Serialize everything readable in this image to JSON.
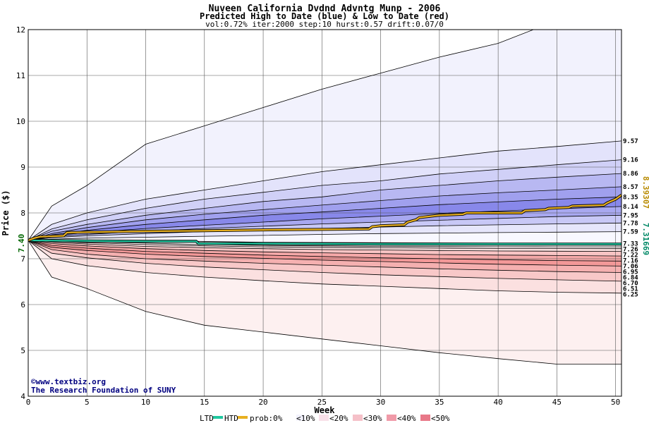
{
  "chart_data": {
    "type": "area",
    "title": "Nuveen California Dvdnd Advntg Munp - 2006",
    "subtitle": "Predicted High to Date (blue) &  Low to Date (red)",
    "params": "vol:0.72% iter:2000 step:10 hurst:0.57 drift:0.07/0",
    "xlabel": "Week",
    "ylabel": "Price ($)",
    "xlim": [
      0,
      50.5
    ],
    "ylim": [
      4,
      12
    ],
    "x_ticks": [
      "0",
      "5",
      "10",
      "15",
      "20",
      "25",
      "30",
      "35",
      "40",
      "45",
      "50"
    ],
    "y_ticks": [
      "4",
      "5",
      "6",
      "7",
      "8",
      "9",
      "10",
      "11",
      "12"
    ],
    "start_price": 7.4,
    "start_label": "7.40",
    "right_side": {
      "high_value": "8.39307",
      "low_value": "7.31669"
    },
    "high_bands": [
      {
        "label": "",
        "values": [
          [
            0,
            7.4
          ],
          [
            2,
            8.15
          ],
          [
            5,
            8.6
          ],
          [
            10,
            9.5
          ],
          [
            15,
            9.9
          ],
          [
            20,
            10.3
          ],
          [
            25,
            10.7
          ],
          [
            30,
            11.05
          ],
          [
            35,
            11.4
          ],
          [
            40,
            11.7
          ],
          [
            43,
            12.0
          ],
          [
            50.5,
            12.0
          ]
        ]
      },
      {
        "label": "9.57",
        "values": [
          [
            0,
            7.4
          ],
          [
            2,
            7.75
          ],
          [
            5,
            8.0
          ],
          [
            10,
            8.3
          ],
          [
            15,
            8.5
          ],
          [
            20,
            8.7
          ],
          [
            25,
            8.9
          ],
          [
            30,
            9.05
          ],
          [
            35,
            9.2
          ],
          [
            40,
            9.35
          ],
          [
            45,
            9.45
          ],
          [
            50.5,
            9.57
          ]
        ]
      },
      {
        "label": "9.16",
        "values": [
          [
            0,
            7.4
          ],
          [
            2,
            7.65
          ],
          [
            5,
            7.85
          ],
          [
            10,
            8.1
          ],
          [
            15,
            8.3
          ],
          [
            20,
            8.45
          ],
          [
            25,
            8.6
          ],
          [
            30,
            8.7
          ],
          [
            35,
            8.85
          ],
          [
            40,
            8.95
          ],
          [
            45,
            9.05
          ],
          [
            50.5,
            9.16
          ]
        ]
      },
      {
        "label": "8.86",
        "values": [
          [
            0,
            7.4
          ],
          [
            2,
            7.6
          ],
          [
            5,
            7.75
          ],
          [
            10,
            7.95
          ],
          [
            15,
            8.1
          ],
          [
            20,
            8.25
          ],
          [
            25,
            8.35
          ],
          [
            30,
            8.5
          ],
          [
            35,
            8.6
          ],
          [
            40,
            8.7
          ],
          [
            45,
            8.78
          ],
          [
            50.5,
            8.86
          ]
        ]
      },
      {
        "label": "8.57",
        "values": [
          [
            0,
            7.4
          ],
          [
            2,
            7.55
          ],
          [
            5,
            7.68
          ],
          [
            10,
            7.85
          ],
          [
            15,
            7.97
          ],
          [
            20,
            8.07
          ],
          [
            25,
            8.17
          ],
          [
            30,
            8.27
          ],
          [
            35,
            8.37
          ],
          [
            40,
            8.44
          ],
          [
            45,
            8.5
          ],
          [
            50.5,
            8.57
          ]
        ]
      },
      {
        "label": "8.35",
        "values": [
          [
            0,
            7.4
          ],
          [
            2,
            7.52
          ],
          [
            5,
            7.62
          ],
          [
            10,
            7.75
          ],
          [
            15,
            7.85
          ],
          [
            20,
            7.95
          ],
          [
            25,
            8.02
          ],
          [
            30,
            8.1
          ],
          [
            35,
            8.18
          ],
          [
            40,
            8.24
          ],
          [
            45,
            8.3
          ],
          [
            50.5,
            8.35
          ]
        ]
      },
      {
        "label": "8.14",
        "values": [
          [
            0,
            7.4
          ],
          [
            2,
            7.5
          ],
          [
            5,
            7.57
          ],
          [
            10,
            7.66
          ],
          [
            15,
            7.73
          ],
          [
            20,
            7.8
          ],
          [
            25,
            7.87
          ],
          [
            30,
            7.93
          ],
          [
            35,
            7.99
          ],
          [
            40,
            8.04
          ],
          [
            45,
            8.09
          ],
          [
            50.5,
            8.14
          ]
        ]
      },
      {
        "label": "7.95",
        "values": [
          [
            0,
            7.4
          ],
          [
            2,
            7.48
          ],
          [
            5,
            7.53
          ],
          [
            10,
            7.6
          ],
          [
            15,
            7.66
          ],
          [
            20,
            7.71
          ],
          [
            25,
            7.76
          ],
          [
            30,
            7.8
          ],
          [
            35,
            7.84
          ],
          [
            40,
            7.88
          ],
          [
            45,
            7.92
          ],
          [
            50.5,
            7.95
          ]
        ]
      },
      {
        "label": "7.78",
        "values": [
          [
            0,
            7.4
          ],
          [
            2,
            7.46
          ],
          [
            5,
            7.5
          ],
          [
            10,
            7.55
          ],
          [
            15,
            7.59
          ],
          [
            20,
            7.62
          ],
          [
            25,
            7.66
          ],
          [
            30,
            7.69
          ],
          [
            35,
            7.72
          ],
          [
            40,
            7.74
          ],
          [
            45,
            7.76
          ],
          [
            50.5,
            7.78
          ]
        ]
      },
      {
        "label": "7.59",
        "values": [
          [
            0,
            7.4
          ],
          [
            2,
            7.43
          ],
          [
            5,
            7.45
          ],
          [
            10,
            7.47
          ],
          [
            15,
            7.49
          ],
          [
            20,
            7.51
          ],
          [
            25,
            7.53
          ],
          [
            30,
            7.55
          ],
          [
            35,
            7.56
          ],
          [
            40,
            7.57
          ],
          [
            45,
            7.58
          ],
          [
            50.5,
            7.59
          ]
        ]
      },
      {
        "label": "7.33",
        "values": [
          [
            0,
            7.4
          ],
          [
            10,
            7.4
          ],
          [
            14.5,
            7.38
          ],
          [
            20,
            7.36
          ],
          [
            30,
            7.35
          ],
          [
            40,
            7.34
          ],
          [
            50.5,
            7.33
          ]
        ]
      }
    ],
    "low_bands": [
      {
        "label": "",
        "values": [
          [
            0,
            7.4
          ],
          [
            2,
            6.6
          ],
          [
            5,
            6.35
          ],
          [
            10,
            5.85
          ],
          [
            15,
            5.55
          ],
          [
            20,
            5.4
          ],
          [
            25,
            5.25
          ],
          [
            30,
            5.1
          ],
          [
            35,
            4.95
          ],
          [
            40,
            4.82
          ],
          [
            45,
            4.7
          ],
          [
            50.5,
            4.7
          ]
        ]
      },
      {
        "label": "6.25",
        "values": [
          [
            0,
            7.4
          ],
          [
            2,
            7.0
          ],
          [
            5,
            6.85
          ],
          [
            10,
            6.7
          ],
          [
            15,
            6.6
          ],
          [
            20,
            6.52
          ],
          [
            25,
            6.45
          ],
          [
            30,
            6.4
          ],
          [
            35,
            6.35
          ],
          [
            40,
            6.3
          ],
          [
            45,
            6.27
          ],
          [
            50.5,
            6.25
          ]
        ]
      },
      {
        "label": "6.51",
        "values": [
          [
            0,
            7.4
          ],
          [
            2,
            7.12
          ],
          [
            5,
            7.02
          ],
          [
            10,
            6.9
          ],
          [
            15,
            6.82
          ],
          [
            20,
            6.76
          ],
          [
            25,
            6.7
          ],
          [
            30,
            6.65
          ],
          [
            35,
            6.61
          ],
          [
            40,
            6.57
          ],
          [
            45,
            6.54
          ],
          [
            50.5,
            6.51
          ]
        ]
      },
      {
        "label": "6.70",
        "values": [
          [
            0,
            7.4
          ],
          [
            2,
            7.2
          ],
          [
            5,
            7.1
          ],
          [
            10,
            7.0
          ],
          [
            15,
            6.95
          ],
          [
            20,
            6.9
          ],
          [
            25,
            6.86
          ],
          [
            30,
            6.82
          ],
          [
            35,
            6.78
          ],
          [
            40,
            6.75
          ],
          [
            45,
            6.72
          ],
          [
            50.5,
            6.7
          ]
        ]
      },
      {
        "label": "6.84",
        "values": [
          [
            0,
            7.4
          ],
          [
            2,
            7.25
          ],
          [
            5,
            7.18
          ],
          [
            10,
            7.1
          ],
          [
            15,
            7.05
          ],
          [
            20,
            7.01
          ],
          [
            25,
            6.97
          ],
          [
            30,
            6.94
          ],
          [
            35,
            6.91
          ],
          [
            40,
            6.88
          ],
          [
            45,
            6.86
          ],
          [
            50.5,
            6.84
          ]
        ]
      },
      {
        "label": "6.95",
        "values": [
          [
            0,
            7.4
          ],
          [
            2,
            7.29
          ],
          [
            5,
            7.23
          ],
          [
            10,
            7.16
          ],
          [
            15,
            7.12
          ],
          [
            20,
            7.08
          ],
          [
            25,
            7.05
          ],
          [
            30,
            7.02
          ],
          [
            35,
            7.0
          ],
          [
            40,
            6.98
          ],
          [
            45,
            6.96
          ],
          [
            50.5,
            6.95
          ]
        ]
      },
      {
        "label": "7.06",
        "values": [
          [
            0,
            7.4
          ],
          [
            2,
            7.33
          ],
          [
            5,
            7.28
          ],
          [
            10,
            7.22
          ],
          [
            15,
            7.18
          ],
          [
            20,
            7.15
          ],
          [
            25,
            7.13
          ],
          [
            30,
            7.11
          ],
          [
            35,
            7.09
          ],
          [
            40,
            7.08
          ],
          [
            45,
            7.07
          ],
          [
            50.5,
            7.06
          ]
        ]
      },
      {
        "label": "7.16",
        "values": [
          [
            0,
            7.4
          ],
          [
            2,
            7.36
          ],
          [
            5,
            7.32
          ],
          [
            10,
            7.27
          ],
          [
            15,
            7.24
          ],
          [
            20,
            7.22
          ],
          [
            25,
            7.2
          ],
          [
            30,
            7.19
          ],
          [
            35,
            7.18
          ],
          [
            40,
            7.17
          ],
          [
            45,
            7.165
          ],
          [
            50.5,
            7.16
          ]
        ]
      },
      {
        "label": "7.22",
        "values": [
          [
            0,
            7.4
          ],
          [
            2,
            7.38
          ],
          [
            5,
            7.35
          ],
          [
            10,
            7.31
          ],
          [
            15,
            7.28
          ],
          [
            20,
            7.26
          ],
          [
            25,
            7.25
          ],
          [
            30,
            7.24
          ],
          [
            35,
            7.23
          ],
          [
            40,
            7.225
          ],
          [
            45,
            7.222
          ],
          [
            50.5,
            7.22
          ]
        ]
      },
      {
        "label": "7.26",
        "values": [
          [
            0,
            7.4
          ],
          [
            2,
            7.39
          ],
          [
            5,
            7.37
          ],
          [
            10,
            7.34
          ],
          [
            15,
            7.31
          ],
          [
            20,
            7.29
          ],
          [
            25,
            7.28
          ],
          [
            30,
            7.27
          ],
          [
            35,
            7.265
          ],
          [
            40,
            7.262
          ],
          [
            45,
            7.26
          ],
          [
            50.5,
            7.26
          ]
        ]
      }
    ],
    "high_to_date_line": [
      [
        0,
        7.4
      ],
      [
        0.5,
        7.45
      ],
      [
        1,
        7.48
      ],
      [
        3,
        7.5
      ],
      [
        3.3,
        7.57
      ],
      [
        5,
        7.58
      ],
      [
        10,
        7.6
      ],
      [
        15,
        7.61
      ],
      [
        20,
        7.63
      ],
      [
        25,
        7.64
      ],
      [
        29,
        7.65
      ],
      [
        29.3,
        7.7
      ],
      [
        30,
        7.72
      ],
      [
        32,
        7.74
      ],
      [
        32.3,
        7.8
      ],
      [
        33,
        7.85
      ],
      [
        33.3,
        7.9
      ],
      [
        35,
        7.95
      ],
      [
        37,
        7.97
      ],
      [
        37.3,
        8.0
      ],
      [
        39,
        8.0
      ],
      [
        42,
        8.0
      ],
      [
        42.3,
        8.05
      ],
      [
        44,
        8.07
      ],
      [
        44.3,
        8.1
      ],
      [
        46,
        8.12
      ],
      [
        46.3,
        8.15
      ],
      [
        49,
        8.17
      ],
      [
        49.3,
        8.22
      ],
      [
        50,
        8.3
      ],
      [
        50.5,
        8.39
      ]
    ],
    "low_to_date_line": [
      [
        0,
        7.4
      ],
      [
        5,
        7.39
      ],
      [
        10,
        7.38
      ],
      [
        14.3,
        7.38
      ],
      [
        14.5,
        7.33
      ],
      [
        20,
        7.33
      ],
      [
        30,
        7.32
      ],
      [
        40,
        7.32
      ],
      [
        50.5,
        7.32
      ]
    ],
    "legend": {
      "ltd": "LTD",
      "htd": "HTD",
      "prob": "prob:0%",
      "items": [
        "<10%",
        "<20%",
        "<30%",
        "<40%",
        "<50%"
      ]
    },
    "credit_url": "©www.textbiz.org",
    "credit_org": "The Research Foundation of SUNY",
    "colors": {
      "htd_line": "#e8b020",
      "ltd_line": "#20c8a0",
      "high_band_shades": [
        "#f2f2fd",
        "#e3e3fb",
        "#d0d0f7",
        "#b8b8f2",
        "#a0a0ee",
        "#8888ea",
        "#a8a8f0",
        "#c8c8f6",
        "#e6e6fb",
        "#f8f8ff"
      ],
      "low_band_shades": [
        "#fdf0f0",
        "#fbe0e0",
        "#f8c8c8",
        "#f5b0b0",
        "#f39898",
        "#f5a8a8",
        "#f8c4c4",
        "#fbe0e0",
        "#fdf0f0"
      ],
      "start_label": "#006600",
      "high_value_color": "#b88a00",
      "low_value_color": "#008866"
    }
  }
}
